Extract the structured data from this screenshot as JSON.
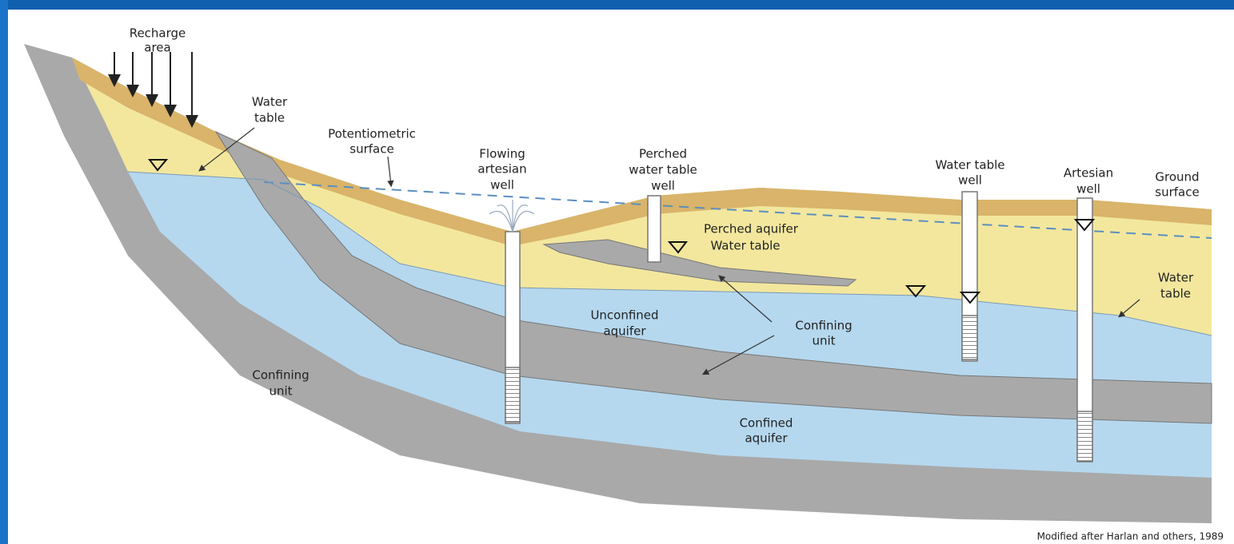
{
  "labels": [
    {
      "lines": [
        "Recharge",
        "area"
      ]
    },
    {
      "lines": [
        "Water",
        "table"
      ]
    },
    {
      "lines": [
        "Potentiometric",
        "surface"
      ]
    },
    {
      "lines": [
        "Flowing",
        "artesian",
        "well"
      ]
    },
    {
      "lines": [
        "Perched",
        "water table",
        "well"
      ]
    },
    {
      "lines": [
        "Water table",
        "well"
      ]
    },
    {
      "lines": [
        "Artesian",
        "well"
      ]
    },
    {
      "lines": [
        "Ground",
        "surface"
      ]
    },
    {
      "lines": [
        "Perched aquifer",
        "Water table"
      ]
    },
    {
      "lines": [
        "Water",
        "table"
      ]
    },
    {
      "lines": [
        "Unconfined",
        "aquifer"
      ]
    },
    {
      "lines": [
        "Confining",
        "unit"
      ]
    },
    {
      "lines": [
        "Confining",
        "unit"
      ]
    },
    {
      "lines": [
        "Confined",
        "aquifer"
      ]
    }
  ],
  "credit": "Modified after Harlan and others, 1989"
}
